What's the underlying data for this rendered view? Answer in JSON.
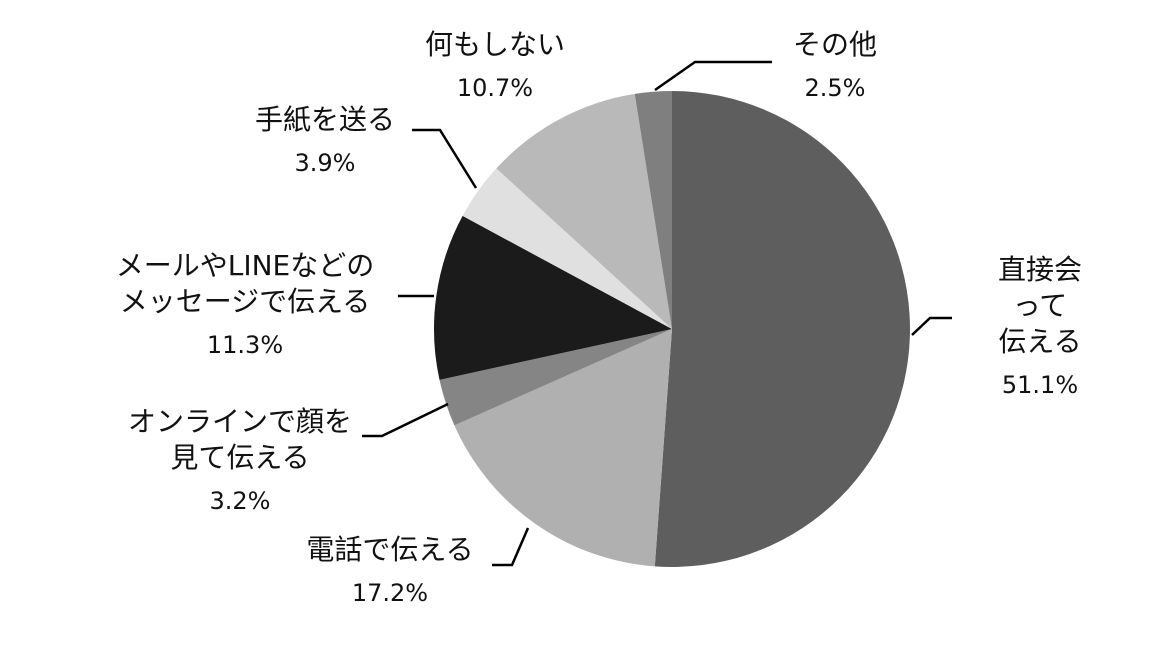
{
  "chart_data": {
    "type": "pie",
    "categories": [
      "直接会って\n伝える",
      "電話で伝える",
      "オンラインで顔を\n見て伝える",
      "メールやLINEなどの\nメッセージで伝える",
      "手紙を送る",
      "何もしない",
      "その他"
    ],
    "values": [
      51.1,
      17.2,
      3.2,
      11.3,
      3.9,
      10.7,
      2.5
    ],
    "value_labels": [
      "51.1%",
      "17.2%",
      "3.2%",
      "11.3%",
      "3.9%",
      "10.7%",
      "2.5%"
    ],
    "colors": [
      "#5e5e5e",
      "#b0b0b0",
      "#858585",
      "#1b1b1b",
      "#e0e0e0",
      "#b9b9b9",
      "#7f7f7f"
    ]
  }
}
